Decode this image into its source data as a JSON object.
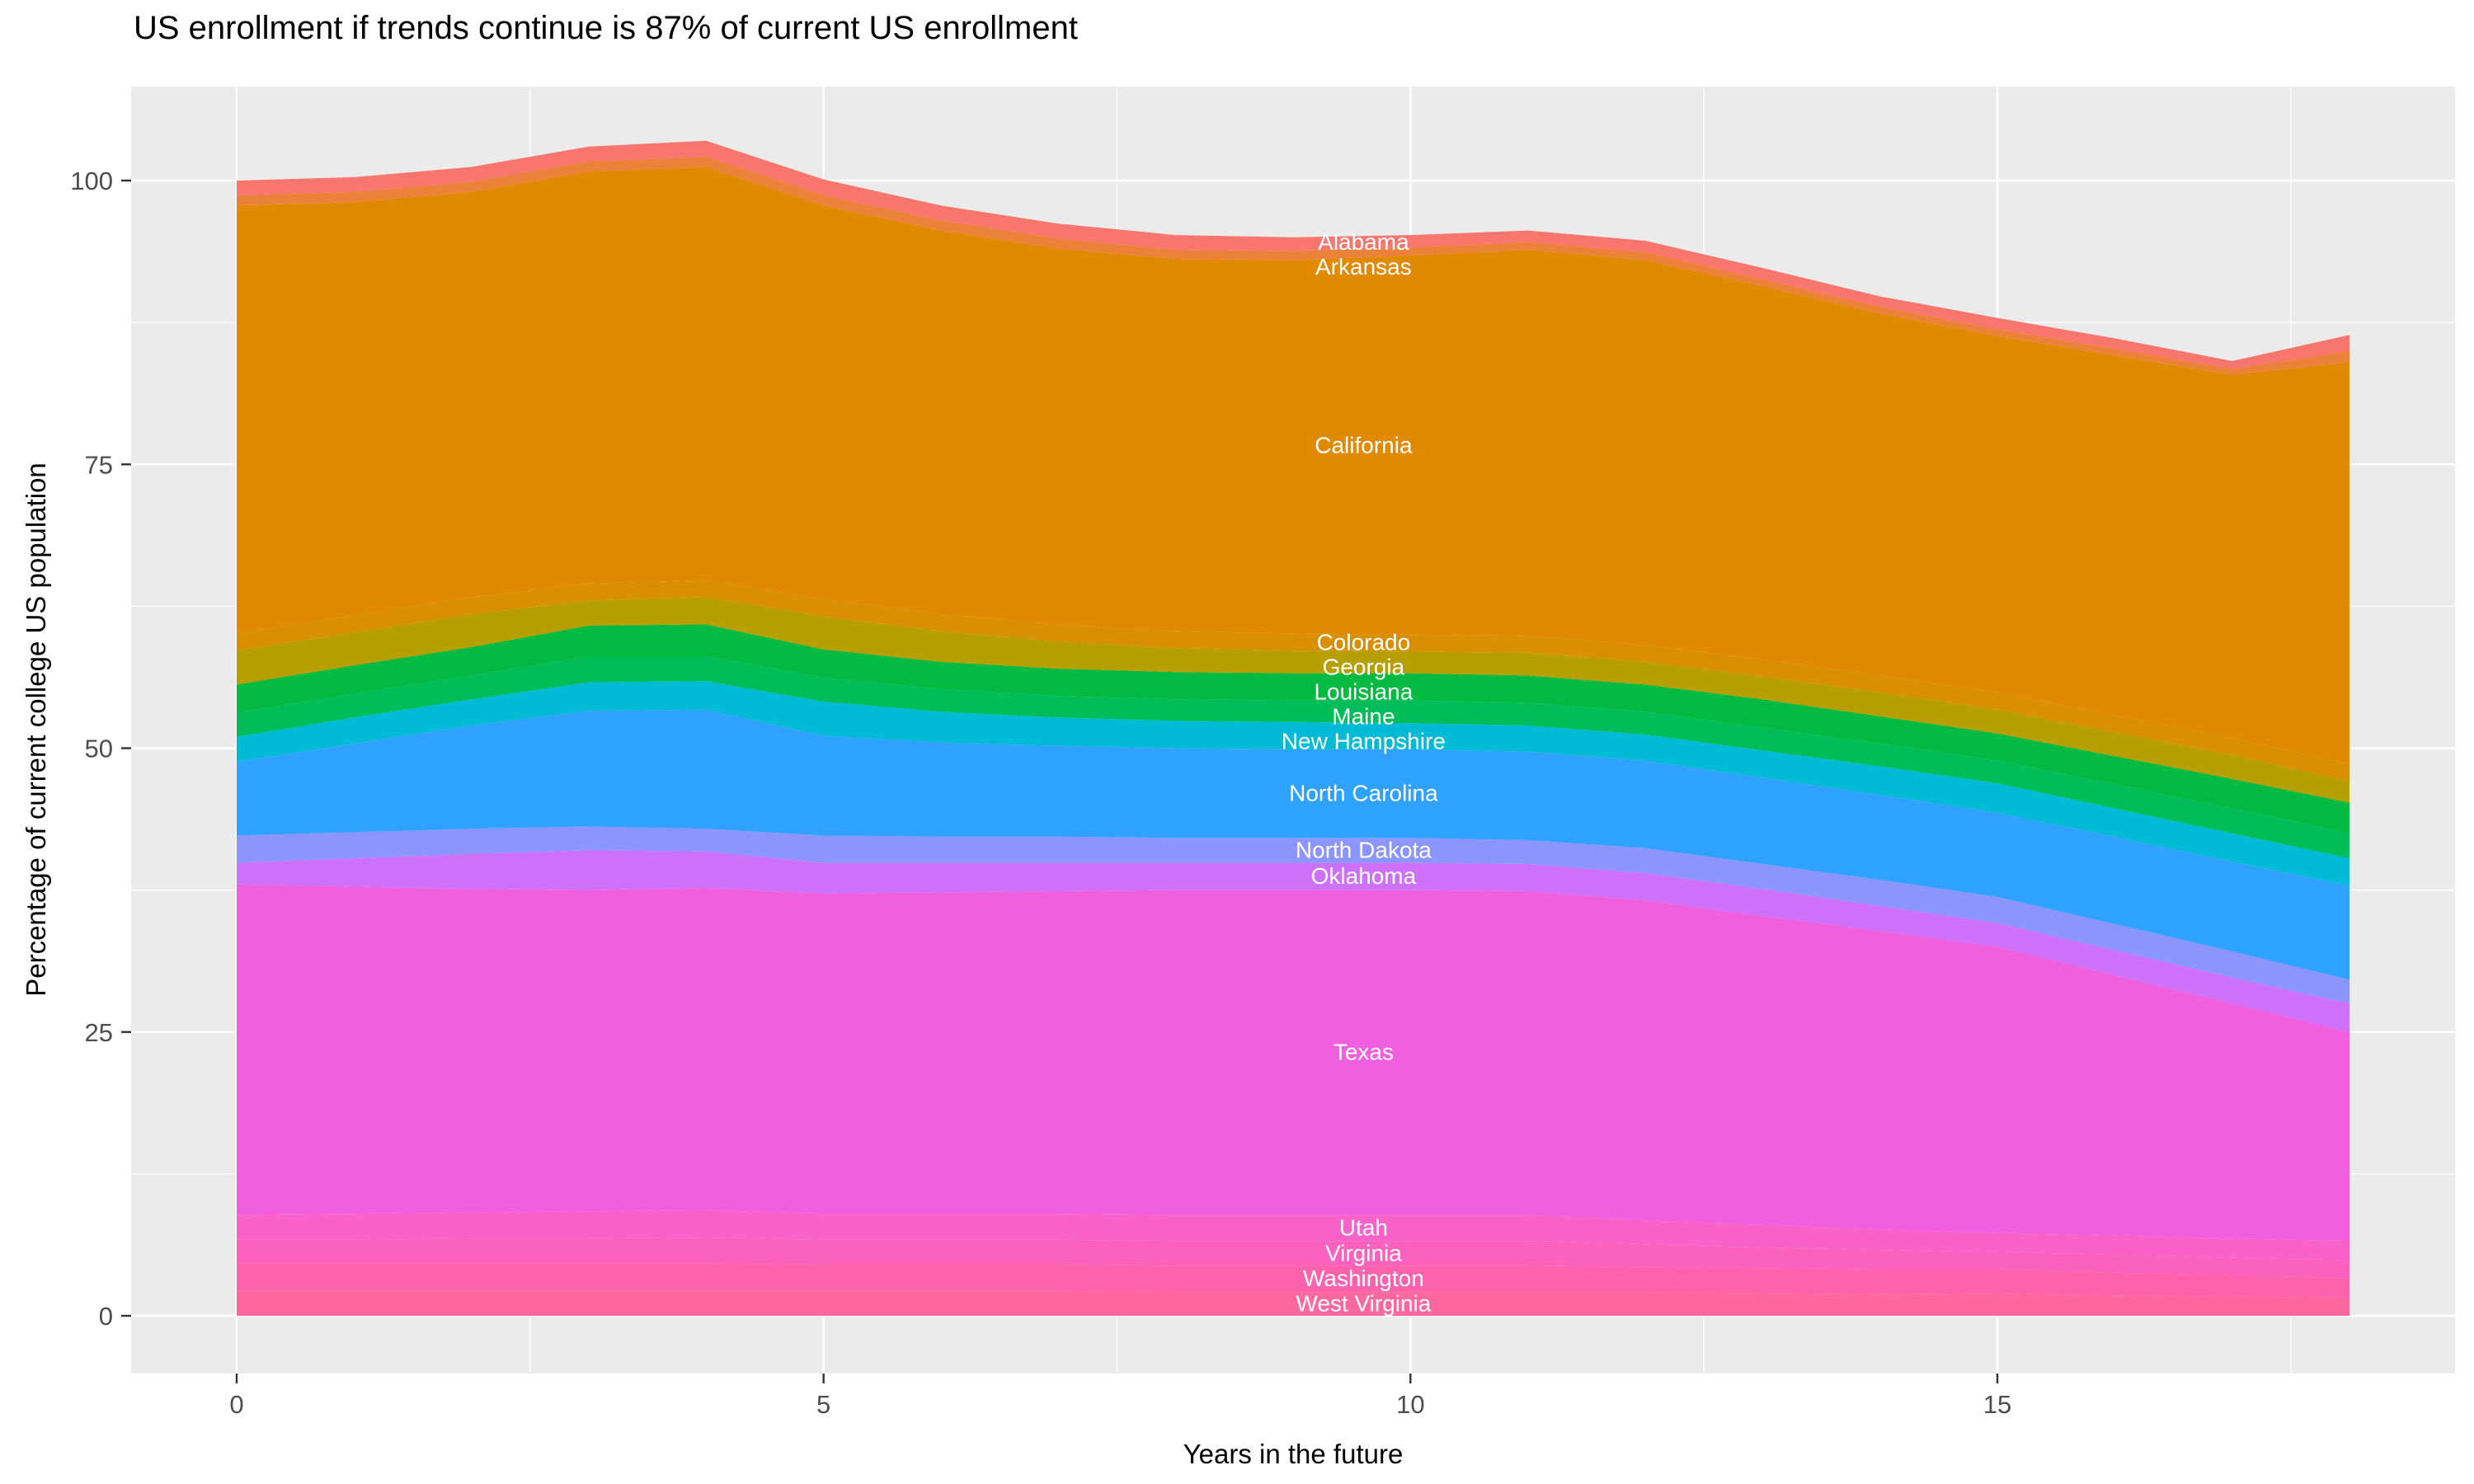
{
  "title": "US enrollment if trends continue is 87% of current US enrollment",
  "x_axis": {
    "label": "Years in the future",
    "tick_labels": [
      "0",
      "5",
      "10",
      "15"
    ],
    "tick_values": [
      0,
      5,
      10,
      15
    ],
    "minor_tick_values": [
      2.5,
      7.5,
      12.5,
      17.5
    ],
    "range": [
      0,
      18
    ]
  },
  "y_axis": {
    "label": "Percentage of current college US population",
    "tick_labels": [
      "0",
      "25",
      "50",
      "75",
      "100"
    ],
    "tick_values": [
      0,
      25,
      50,
      75,
      100
    ],
    "minor_tick_values": [
      12.5,
      37.5,
      62.5,
      87.5
    ]
  },
  "style": {
    "panel_bg": "#EBEBEB",
    "grid_color": "#FFFFFF",
    "tick_text_color": "#4D4D4D",
    "tick_mark_color": "#333333",
    "title_color": "#000000",
    "area_label_color": "#FFFFFF"
  },
  "chart_data": {
    "type": "area",
    "stacked": true,
    "title": "US enrollment if trends continue is 87% of current US enrollment",
    "xlabel": "Years in the future",
    "ylabel": "Percentage of current college US population",
    "x": [
      0,
      1,
      2,
      3,
      4,
      5,
      6,
      7,
      8,
      9,
      10,
      11,
      12,
      13,
      14,
      15,
      16,
      17,
      18
    ],
    "xlim": [
      0,
      18
    ],
    "ylim": [
      0,
      103.5
    ],
    "grid": true,
    "legend_position": "none",
    "label_x_position": 9.6,
    "series_order": "top-to-bottom (Alabama on top of stack, West Virginia at bottom)",
    "series": [
      {
        "name": "Alabama",
        "color": "#F8766D",
        "values": [
          1.3,
          1.3,
          1.3,
          1.3,
          1.4,
          1.4,
          1.3,
          1.3,
          1.3,
          1.2,
          1.1,
          1.0,
          1.0,
          1.0,
          0.9,
          1.0,
          0.9,
          0.7,
          1.4
        ]
      },
      {
        "name": "Arkansas",
        "color": "#EC8239",
        "values": [
          0.9,
          0.9,
          0.9,
          0.9,
          0.9,
          0.9,
          0.9,
          0.9,
          0.8,
          0.8,
          0.7,
          0.7,
          0.7,
          0.6,
          0.6,
          0.6,
          0.6,
          0.5,
          1.0
        ]
      },
      {
        "name": "California",
        "color": "#E18A00",
        "values": [
          37.7,
          36.4,
          35.7,
          36.3,
          36.4,
          34.7,
          33.8,
          33.1,
          32.8,
          32.9,
          33.4,
          34.0,
          33.9,
          32.9,
          31.9,
          31.4,
          31.7,
          32.0,
          35.4
        ]
      },
      {
        "name": "Colorado",
        "color": "#D89000",
        "values": [
          1.5,
          1.5,
          1.5,
          1.5,
          1.5,
          1.5,
          1.5,
          1.5,
          1.5,
          1.5,
          1.5,
          1.5,
          1.5,
          1.5,
          1.5,
          1.5,
          1.5,
          1.5,
          1.5
        ]
      },
      {
        "name": "Georgia",
        "color": "#B79F00",
        "values": [
          3.0,
          2.9,
          2.9,
          2.2,
          2.4,
          2.9,
          2.7,
          2.4,
          2.1,
          2.0,
          1.9,
          2.0,
          2.0,
          2.0,
          2.1,
          2.1,
          2.1,
          2.1,
          1.9
        ]
      },
      {
        "name": "Louisiana",
        "color": "#00BA42",
        "values": [
          2.5,
          2.5,
          2.5,
          2.7,
          2.8,
          2.5,
          2.4,
          2.4,
          2.4,
          2.4,
          2.4,
          2.4,
          2.4,
          2.5,
          2.4,
          2.4,
          2.5,
          2.6,
          2.7
        ]
      },
      {
        "name": "Maine",
        "color": "#00BC59",
        "values": [
          2.1,
          2.1,
          2.1,
          2.3,
          2.2,
          2.1,
          2.0,
          1.9,
          1.9,
          1.9,
          2.0,
          2.0,
          2.0,
          2.0,
          2.0,
          2.0,
          2.1,
          2.2,
          2.2
        ]
      },
      {
        "name": "New Hampshire",
        "color": "#00BBD5",
        "values": [
          2.2,
          2.3,
          2.3,
          2.5,
          2.5,
          3.0,
          2.7,
          2.5,
          2.4,
          2.4,
          2.3,
          2.3,
          2.3,
          2.4,
          2.5,
          2.6,
          2.5,
          2.5,
          2.4
        ]
      },
      {
        "name": "North Carolina",
        "color": "#2FA2FF",
        "values": [
          6.5,
          7.8,
          9.1,
          10.2,
          10.5,
          8.8,
          8.3,
          8.0,
          7.9,
          7.8,
          7.8,
          7.8,
          7.7,
          7.6,
          7.5,
          7.4,
          7.7,
          7.9,
          8.3
        ]
      },
      {
        "name": "North Dakota",
        "color": "#8C95FB",
        "values": [
          2.4,
          2.3,
          2.2,
          2.1,
          2.0,
          2.4,
          2.3,
          2.3,
          2.2,
          2.2,
          2.2,
          2.1,
          2.2,
          2.2,
          2.3,
          2.3,
          2.3,
          2.3,
          2.1
        ]
      },
      {
        "name": "Oklahoma",
        "color": "#CE71F9",
        "values": [
          1.9,
          2.5,
          3.1,
          3.5,
          3.2,
          2.7,
          2.6,
          2.5,
          2.4,
          2.4,
          2.4,
          2.4,
          2.4,
          2.4,
          2.2,
          2.1,
          2.2,
          2.3,
          2.5
        ]
      },
      {
        "name": "Texas",
        "color": "#F15FE1",
        "values": [
          29.1,
          28.8,
          28.5,
          28.3,
          28.4,
          28.2,
          28.3,
          28.4,
          28.6,
          28.6,
          28.6,
          28.5,
          28.2,
          27.2,
          26.3,
          25.2,
          22.9,
          20.7,
          18.4
        ]
      },
      {
        "name": "Utah",
        "color": "#F962C9",
        "values": [
          2.2,
          2.3,
          2.3,
          2.4,
          2.4,
          2.3,
          2.3,
          2.3,
          2.3,
          2.3,
          2.3,
          2.3,
          2.1,
          2.0,
          1.8,
          1.7,
          1.7,
          1.7,
          1.7
        ]
      },
      {
        "name": "Virginia",
        "color": "#FC61BD",
        "values": [
          2.1,
          2.1,
          2.2,
          2.2,
          2.3,
          2.2,
          2.2,
          2.2,
          2.2,
          2.2,
          2.2,
          2.2,
          2.0,
          1.8,
          1.7,
          1.5,
          1.6,
          1.5,
          1.6
        ]
      },
      {
        "name": "Washington",
        "color": "#FE62AD",
        "values": [
          2.4,
          2.4,
          2.4,
          2.4,
          2.4,
          2.3,
          2.3,
          2.3,
          2.3,
          2.3,
          2.3,
          2.3,
          2.2,
          2.2,
          2.2,
          2.1,
          2.0,
          1.9,
          1.7
        ]
      },
      {
        "name": "West Virginia",
        "color": "#FF689E",
        "values": [
          2.2,
          2.2,
          2.2,
          2.2,
          2.2,
          2.2,
          2.2,
          2.2,
          2.1,
          2.1,
          2.1,
          2.1,
          2.1,
          2.0,
          1.9,
          2.0,
          1.8,
          1.7,
          1.6
        ]
      }
    ]
  }
}
